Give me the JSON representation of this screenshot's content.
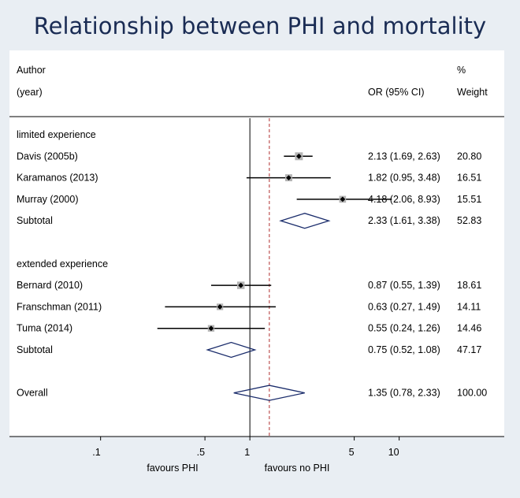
{
  "title": "Relationship between PHI and mortality",
  "chart_data": {
    "type": "forest",
    "title": "Relationship between PHI and mortality",
    "x_scale": "log",
    "xlim": [
      0.075,
      15
    ],
    "x_ticks": [
      {
        "value": 0.1,
        "label": ".1"
      },
      {
        "value": 0.5,
        "label": ".5"
      },
      {
        "value": 1,
        "label": "1"
      },
      {
        "value": 5,
        "label": "5"
      },
      {
        "value": 10,
        "label": "10"
      }
    ],
    "null_line": 1,
    "overall_line": 1.35,
    "xlabel_left": "favours PHI",
    "xlabel_right": "favours no PHI",
    "headers": {
      "author": [
        "Author",
        "(year)"
      ],
      "ci": "OR (95% CI)",
      "weight": [
        "%",
        "Weight"
      ]
    },
    "rows": [
      {
        "kind": "group",
        "label": "limited experience"
      },
      {
        "kind": "study",
        "label": "Davis (2005b)",
        "or": 2.13,
        "lo": 1.69,
        "hi": 2.63,
        "ci_text": "2.13 (1.69, 2.63)",
        "weight": 20.8,
        "weight_text": "20.80"
      },
      {
        "kind": "study",
        "label": "Karamanos (2013)",
        "or": 1.82,
        "lo": 0.95,
        "hi": 3.48,
        "ci_text": "1.82 (0.95, 3.48)",
        "weight": 16.51,
        "weight_text": "16.51"
      },
      {
        "kind": "study",
        "label": "Murray (2000)",
        "or": 4.18,
        "lo": 2.06,
        "hi": 8.93,
        "ci_text": "4.18 (2.06, 8.93)",
        "weight": 15.51,
        "weight_text": "15.51"
      },
      {
        "kind": "subtotal",
        "label": "Subtotal",
        "or": 2.33,
        "lo": 1.61,
        "hi": 3.38,
        "ci_text": "2.33 (1.61, 3.38)",
        "weight": 52.83,
        "weight_text": "52.83"
      },
      {
        "kind": "blank"
      },
      {
        "kind": "group",
        "label": "extended experience"
      },
      {
        "kind": "study",
        "label": "Bernard (2010)",
        "or": 0.87,
        "lo": 0.55,
        "hi": 1.39,
        "ci_text": "0.87 (0.55, 1.39)",
        "weight": 18.61,
        "weight_text": "18.61"
      },
      {
        "kind": "study",
        "label": "Franschman (2011)",
        "or": 0.63,
        "lo": 0.27,
        "hi": 1.49,
        "ci_text": "0.63 (0.27, 1.49)",
        "weight": 14.11,
        "weight_text": "14.11"
      },
      {
        "kind": "study",
        "label": "Tuma (2014)",
        "or": 0.55,
        "lo": 0.24,
        "hi": 1.26,
        "ci_text": "0.55 (0.24, 1.26)",
        "weight": 14.46,
        "weight_text": "14.46"
      },
      {
        "kind": "subtotal",
        "label": "Subtotal",
        "or": 0.75,
        "lo": 0.52,
        "hi": 1.08,
        "ci_text": "0.75 (0.52, 1.08)",
        "weight": 47.17,
        "weight_text": "47.17"
      },
      {
        "kind": "blank"
      },
      {
        "kind": "overall",
        "label": "Overall",
        "or": 1.35,
        "lo": 0.78,
        "hi": 2.33,
        "ci_text": "1.35 (0.78, 2.33)",
        "weight": 100.0,
        "weight_text": "100.00"
      }
    ],
    "colors": {
      "page_bg": "#e9eef3",
      "panel_bg": "#ffffff",
      "title": "#1a2c54",
      "diamond": "#1a2c6b",
      "reference_line": "#b03030",
      "weight_box": "#b4b4b4"
    }
  }
}
